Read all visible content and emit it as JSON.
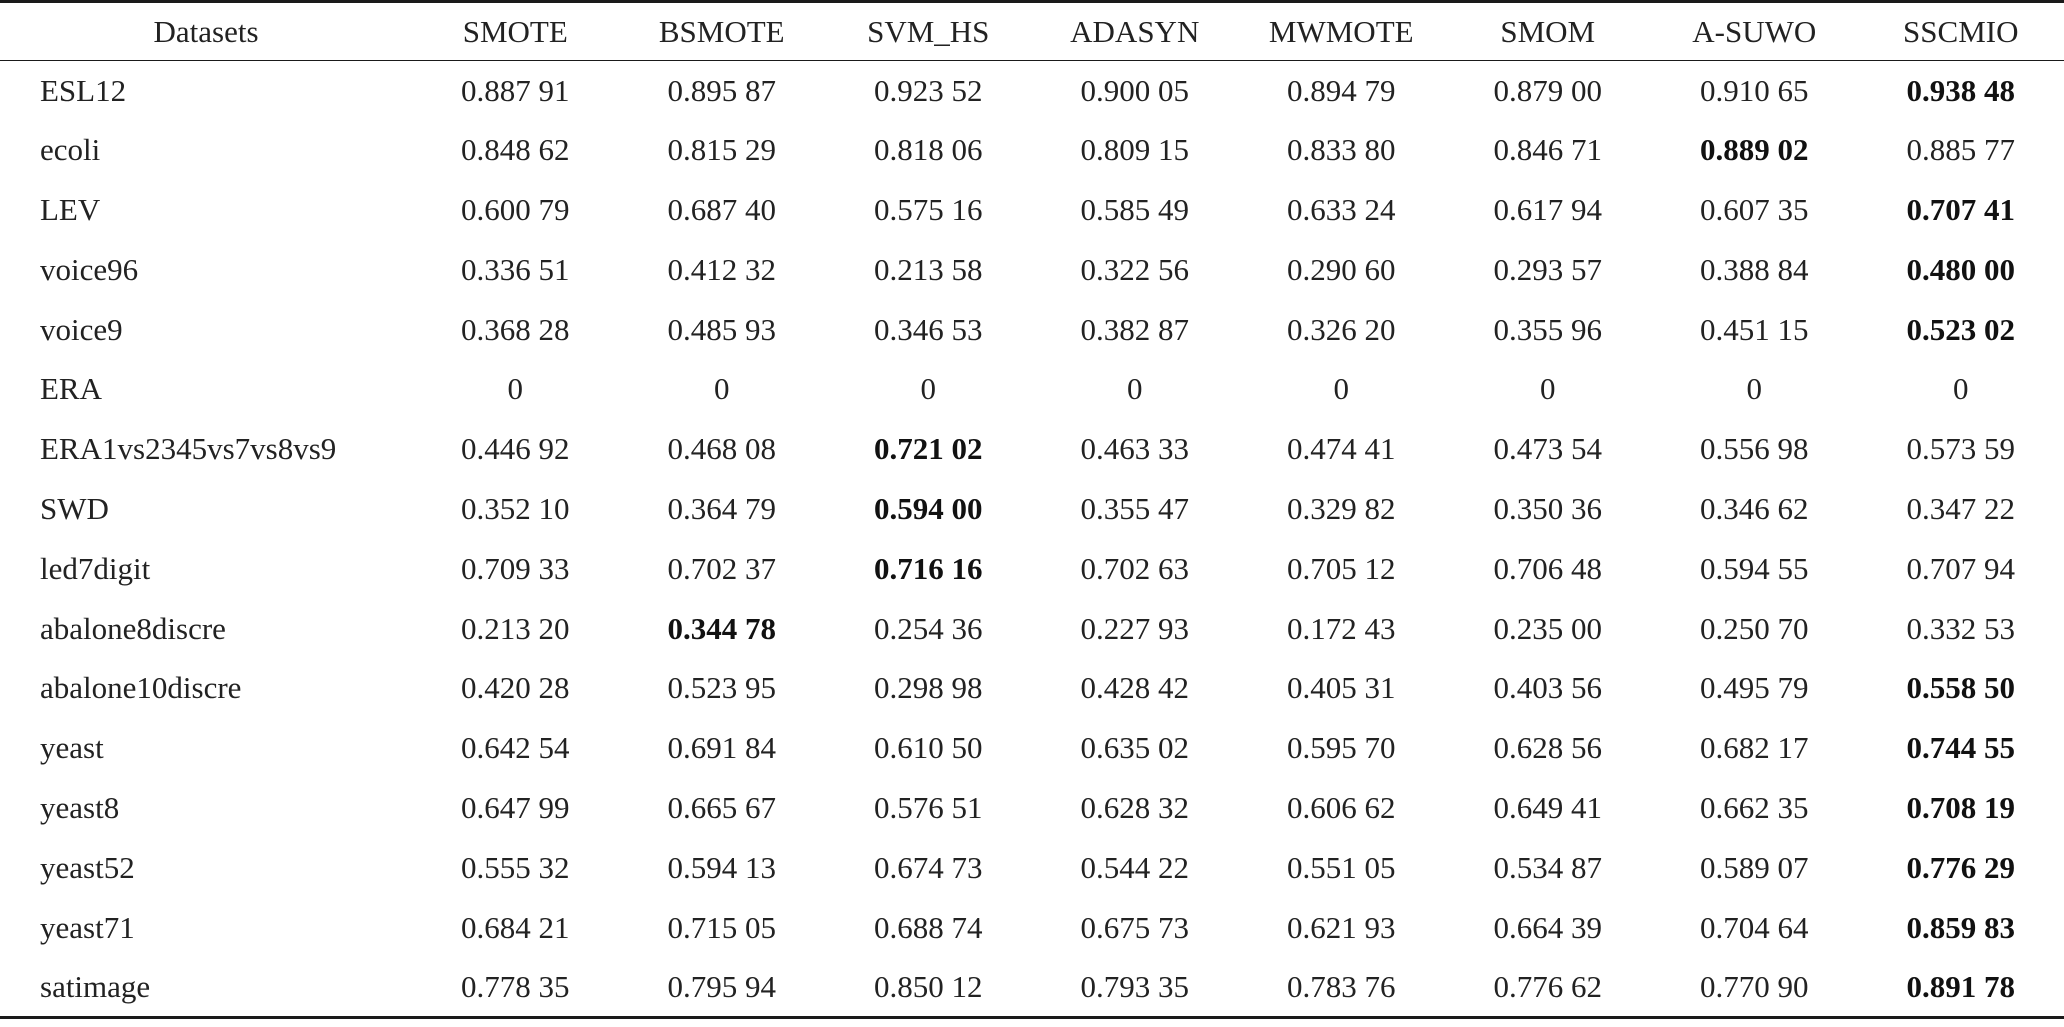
{
  "table": {
    "columns": [
      "Datasets",
      "SMOTE",
      "BSMOTE",
      "SVM_HS",
      "ADASYN",
      "MWMOTE",
      "SMOM",
      "A-SUWO",
      "SSCMIO"
    ],
    "rows": [
      {
        "dataset": "ESL12",
        "values": [
          "0.887 91",
          "0.895 87",
          "0.923 52",
          "0.900 05",
          "0.894 79",
          "0.879 00",
          "0.910 65",
          "0.938 48"
        ],
        "bold": [
          7
        ]
      },
      {
        "dataset": "ecoli",
        "values": [
          "0.848 62",
          "0.815 29",
          "0.818 06",
          "0.809 15",
          "0.833 80",
          "0.846 71",
          "0.889 02",
          "0.885 77"
        ],
        "bold": [
          6
        ]
      },
      {
        "dataset": "LEV",
        "values": [
          "0.600 79",
          "0.687 40",
          "0.575 16",
          "0.585 49",
          "0.633 24",
          "0.617 94",
          "0.607 35",
          "0.707 41"
        ],
        "bold": [
          7
        ]
      },
      {
        "dataset": "voice96",
        "values": [
          "0.336 51",
          "0.412 32",
          "0.213 58",
          "0.322 56",
          "0.290 60",
          "0.293 57",
          "0.388 84",
          "0.480 00"
        ],
        "bold": [
          7
        ]
      },
      {
        "dataset": "voice9",
        "values": [
          "0.368 28",
          "0.485 93",
          "0.346 53",
          "0.382 87",
          "0.326 20",
          "0.355 96",
          "0.451 15",
          "0.523 02"
        ],
        "bold": [
          7
        ]
      },
      {
        "dataset": "ERA",
        "values": [
          "0",
          "0",
          "0",
          "0",
          "0",
          "0",
          "0",
          "0"
        ],
        "bold": []
      },
      {
        "dataset": "ERA1vs2345vs7vs8vs9",
        "values": [
          "0.446 92",
          "0.468 08",
          "0.721 02",
          "0.463 33",
          "0.474 41",
          "0.473 54",
          "0.556 98",
          "0.573 59"
        ],
        "bold": [
          2
        ]
      },
      {
        "dataset": "SWD",
        "values": [
          "0.352 10",
          "0.364 79",
          "0.594 00",
          "0.355 47",
          "0.329 82",
          "0.350 36",
          "0.346 62",
          "0.347 22"
        ],
        "bold": [
          2
        ]
      },
      {
        "dataset": "led7digit",
        "values": [
          "0.709 33",
          "0.702 37",
          "0.716 16",
          "0.702 63",
          "0.705 12",
          "0.706 48",
          "0.594 55",
          "0.707 94"
        ],
        "bold": [
          2
        ]
      },
      {
        "dataset": "abalone8discre",
        "values": [
          "0.213 20",
          "0.344 78",
          "0.254 36",
          "0.227 93",
          "0.172 43",
          "0.235 00",
          "0.250 70",
          "0.332 53"
        ],
        "bold": [
          1
        ]
      },
      {
        "dataset": "abalone10discre",
        "values": [
          "0.420 28",
          "0.523 95",
          "0.298 98",
          "0.428 42",
          "0.405 31",
          "0.403 56",
          "0.495 79",
          "0.558 50"
        ],
        "bold": [
          7
        ]
      },
      {
        "dataset": "yeast",
        "values": [
          "0.642 54",
          "0.691 84",
          "0.610 50",
          "0.635 02",
          "0.595 70",
          "0.628 56",
          "0.682 17",
          "0.744 55"
        ],
        "bold": [
          7
        ]
      },
      {
        "dataset": "yeast8",
        "values": [
          "0.647 99",
          "0.665 67",
          "0.576 51",
          "0.628 32",
          "0.606 62",
          "0.649 41",
          "0.662 35",
          "0.708 19"
        ],
        "bold": [
          7
        ]
      },
      {
        "dataset": "yeast52",
        "values": [
          "0.555 32",
          "0.594 13",
          "0.674 73",
          "0.544 22",
          "0.551 05",
          "0.534 87",
          "0.589 07",
          "0.776 29"
        ],
        "bold": [
          7
        ]
      },
      {
        "dataset": "yeast71",
        "values": [
          "0.684 21",
          "0.715 05",
          "0.688 74",
          "0.675 73",
          "0.621 93",
          "0.664 39",
          "0.704 64",
          "0.859 83"
        ],
        "bold": [
          7
        ]
      },
      {
        "dataset": "satimage",
        "values": [
          "0.778 35",
          "0.795 94",
          "0.850 12",
          "0.793 35",
          "0.783 76",
          "0.776 62",
          "0.770 90",
          "0.891 78"
        ],
        "bold": [
          7
        ]
      }
    ]
  }
}
